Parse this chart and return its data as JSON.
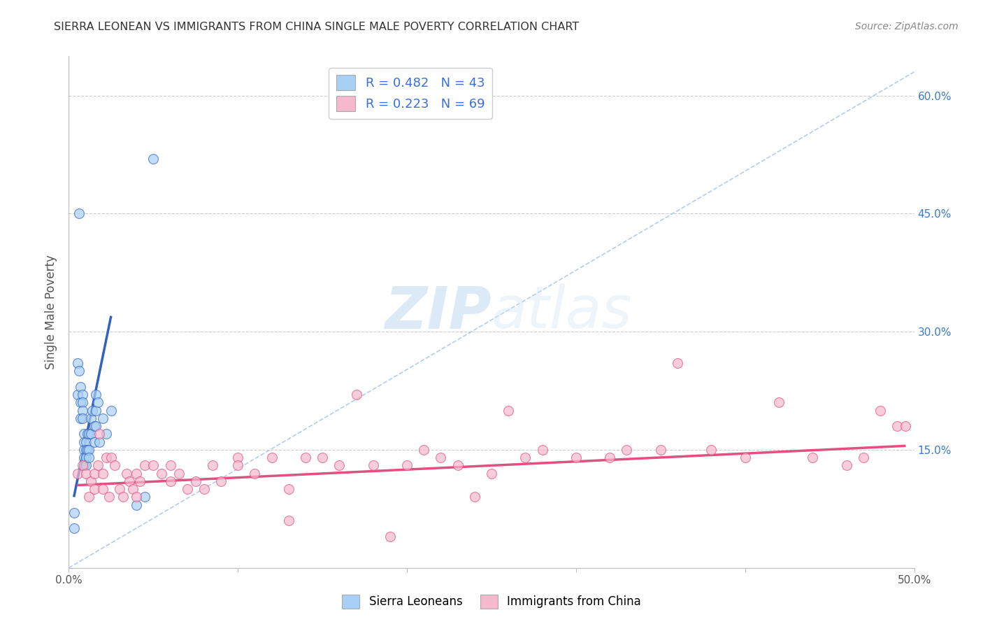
{
  "title": "SIERRA LEONEAN VS IMMIGRANTS FROM CHINA SINGLE MALE POVERTY CORRELATION CHART",
  "source": "Source: ZipAtlas.com",
  "ylabel": "Single Male Poverty",
  "xmin": 0.0,
  "xmax": 0.5,
  "ymin": 0.0,
  "ymax": 0.65,
  "color_blue": "#A8D0F5",
  "color_pink": "#F5B8CC",
  "color_blue_line": "#3060C0",
  "color_pink_line": "#E05080",
  "color_dashed": "#A8C8F0",
  "watermark_color": "#D0E4F7",
  "background_color": "#FFFFFF",
  "grid_color": "#CCCCCC",
  "blue_scatter_x": [
    0.003,
    0.003,
    0.005,
    0.005,
    0.006,
    0.006,
    0.007,
    0.007,
    0.007,
    0.008,
    0.008,
    0.008,
    0.008,
    0.009,
    0.009,
    0.009,
    0.009,
    0.009,
    0.01,
    0.01,
    0.01,
    0.01,
    0.011,
    0.011,
    0.012,
    0.012,
    0.012,
    0.013,
    0.013,
    0.014,
    0.015,
    0.015,
    0.016,
    0.016,
    0.016,
    0.017,
    0.018,
    0.02,
    0.022,
    0.025,
    0.04,
    0.045,
    0.05
  ],
  "blue_scatter_y": [
    0.07,
    0.05,
    0.26,
    0.22,
    0.45,
    0.25,
    0.23,
    0.21,
    0.19,
    0.22,
    0.21,
    0.2,
    0.19,
    0.17,
    0.16,
    0.15,
    0.14,
    0.13,
    0.16,
    0.15,
    0.14,
    0.13,
    0.17,
    0.15,
    0.17,
    0.15,
    0.14,
    0.19,
    0.17,
    0.2,
    0.18,
    0.16,
    0.22,
    0.2,
    0.18,
    0.21,
    0.16,
    0.19,
    0.17,
    0.2,
    0.08,
    0.09,
    0.52
  ],
  "pink_scatter_x": [
    0.005,
    0.008,
    0.01,
    0.012,
    0.013,
    0.015,
    0.015,
    0.017,
    0.018,
    0.02,
    0.02,
    0.022,
    0.024,
    0.025,
    0.027,
    0.03,
    0.032,
    0.034,
    0.036,
    0.038,
    0.04,
    0.04,
    0.042,
    0.045,
    0.05,
    0.055,
    0.06,
    0.06,
    0.065,
    0.07,
    0.075,
    0.08,
    0.085,
    0.09,
    0.1,
    0.1,
    0.11,
    0.12,
    0.13,
    0.13,
    0.14,
    0.15,
    0.16,
    0.17,
    0.18,
    0.19,
    0.2,
    0.21,
    0.22,
    0.23,
    0.24,
    0.25,
    0.26,
    0.27,
    0.28,
    0.3,
    0.32,
    0.33,
    0.35,
    0.36,
    0.38,
    0.4,
    0.42,
    0.44,
    0.46,
    0.47,
    0.48,
    0.49,
    0.495
  ],
  "pink_scatter_y": [
    0.12,
    0.13,
    0.12,
    0.09,
    0.11,
    0.1,
    0.12,
    0.13,
    0.17,
    0.1,
    0.12,
    0.14,
    0.09,
    0.14,
    0.13,
    0.1,
    0.09,
    0.12,
    0.11,
    0.1,
    0.12,
    0.09,
    0.11,
    0.13,
    0.13,
    0.12,
    0.13,
    0.11,
    0.12,
    0.1,
    0.11,
    0.1,
    0.13,
    0.11,
    0.14,
    0.13,
    0.12,
    0.14,
    0.1,
    0.06,
    0.14,
    0.14,
    0.13,
    0.22,
    0.13,
    0.04,
    0.13,
    0.15,
    0.14,
    0.13,
    0.09,
    0.12,
    0.2,
    0.14,
    0.15,
    0.14,
    0.14,
    0.15,
    0.15,
    0.26,
    0.15,
    0.14,
    0.21,
    0.14,
    0.13,
    0.14,
    0.2,
    0.18,
    0.18
  ],
  "blue_line_x": [
    0.003,
    0.025
  ],
  "blue_line_y": [
    0.09,
    0.32
  ],
  "pink_line_x": [
    0.005,
    0.495
  ],
  "pink_line_y": [
    0.105,
    0.155
  ],
  "dashed_line_x": [
    0.0,
    0.5
  ],
  "dashed_line_y": [
    0.0,
    0.63
  ]
}
